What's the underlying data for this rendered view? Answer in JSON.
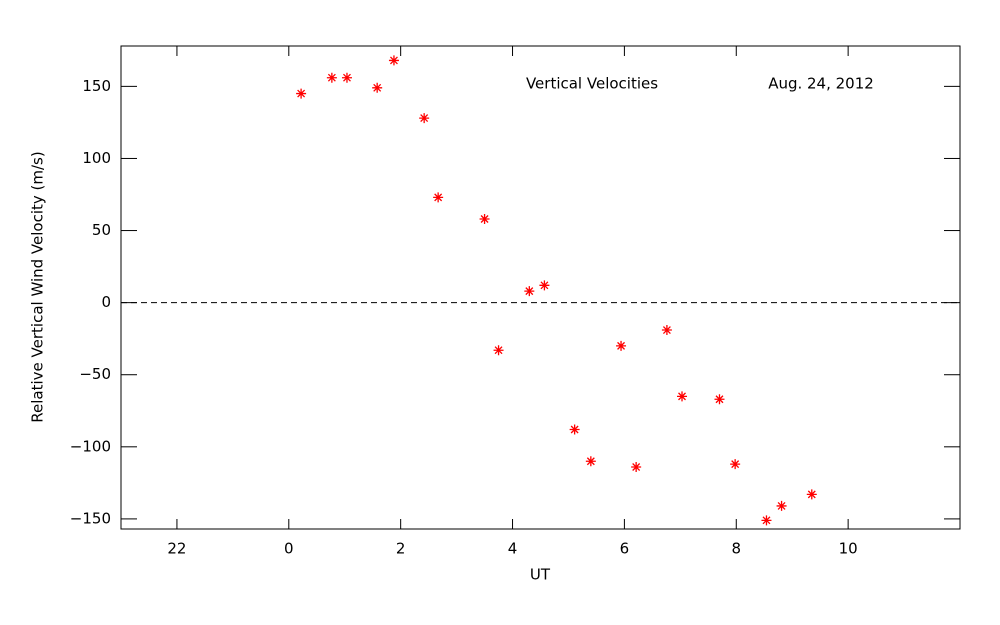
{
  "chart_data": {
    "type": "scatter",
    "annotations": [
      "Vertical Velocities",
      "Aug. 24, 2012"
    ],
    "x_label": "UT",
    "y_label": "Relative Vertical Wind Velocity (m/s)",
    "x": [
      0.22,
      0.77,
      1.04,
      1.58,
      1.88,
      2.42,
      2.67,
      3.5,
      3.75,
      4.3,
      4.57,
      5.11,
      5.4,
      5.94,
      6.21,
      6.76,
      7.03,
      7.7,
      7.98,
      8.54,
      8.81,
      9.35
    ],
    "values": [
      145,
      156,
      156,
      149,
      168,
      128,
      73,
      58,
      -33,
      8,
      12,
      -88,
      -110,
      -30,
      -114,
      -19,
      -65,
      -67,
      -112,
      -151,
      -141,
      -133
    ],
    "color": "#ff0000",
    "reference_line": 0,
    "xlim": [
      -3,
      12
    ],
    "ylim": [
      -157,
      178
    ],
    "xticks": [
      {
        "value": -2,
        "label": "22"
      },
      0,
      2,
      4,
      6,
      8,
      10
    ],
    "yticks": [
      {
        "value": -150,
        "label": "−150"
      },
      {
        "value": -100,
        "label": "−100"
      },
      {
        "value": -50,
        "label": "−50"
      },
      0,
      50,
      100,
      150
    ]
  }
}
